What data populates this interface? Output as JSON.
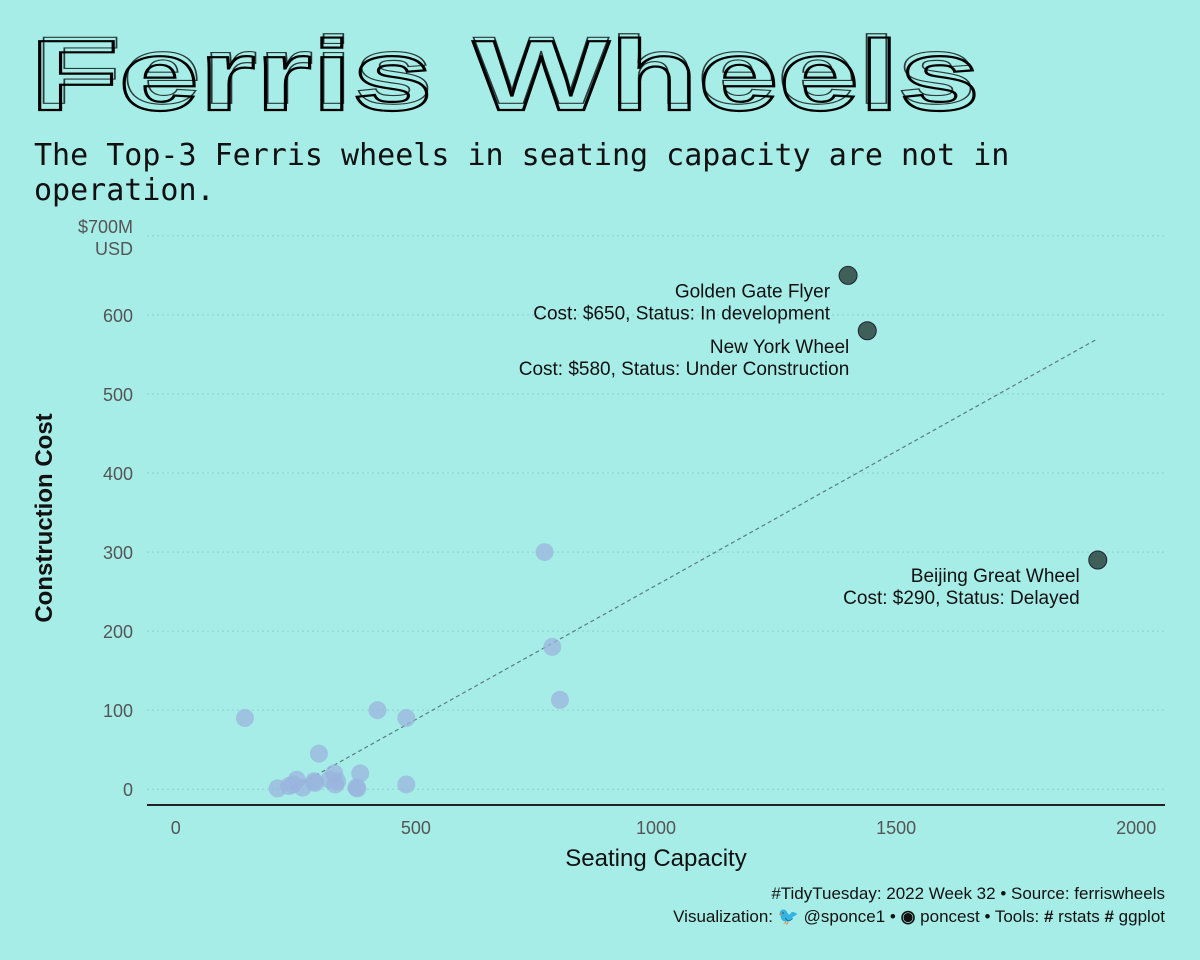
{
  "title": "Ferris Wheels",
  "subtitle": "The Top-3 Ferris wheels in seating capacity are not in operation.",
  "caption": {
    "line1": "#TidyTuesday: 2022 Week 32 • Source: ferriswheels",
    "line2_prefix": "Visualization:",
    "twitter_handle": "@sponce1",
    "sep1": "•",
    "github_handle": "poncest",
    "sep2": "• Tools:",
    "tool1": "rstats",
    "tool2": "ggplot"
  },
  "colors": {
    "background": "#a6ede8",
    "point_light": "#9ab4dd",
    "point_dark": "#3f5f59",
    "text": "#111111",
    "tick_text": "#555555",
    "grid": "#8fd0cc"
  },
  "chart_data": {
    "type": "scatter",
    "xlabel": "Seating Capacity",
    "ylabel": "Construction Cost",
    "xlim": [
      -60,
      2060
    ],
    "ylim": [
      -20,
      710
    ],
    "xticks": [
      0,
      500,
      1000,
      1500,
      2000
    ],
    "yticks": [
      0,
      100,
      200,
      300,
      400,
      500,
      600,
      700
    ],
    "ytick_labels": [
      "0",
      "100",
      "200",
      "300",
      "400",
      "500",
      "600",
      "$700M\nUSD"
    ],
    "grid": "horizontal dotted",
    "trend_line": {
      "style": "dashed",
      "from": [
        240,
        0
      ],
      "to": [
        1920,
        570
      ]
    },
    "points": [
      {
        "x": 144,
        "y": 90
      },
      {
        "x": 212,
        "y": 1
      },
      {
        "x": 236,
        "y": 4
      },
      {
        "x": 244,
        "y": 6
      },
      {
        "x": 252,
        "y": 12
      },
      {
        "x": 264,
        "y": 2
      },
      {
        "x": 288,
        "y": 10
      },
      {
        "x": 290,
        "y": 8
      },
      {
        "x": 298,
        "y": 45
      },
      {
        "x": 320,
        "y": 12
      },
      {
        "x": 330,
        "y": 20
      },
      {
        "x": 332,
        "y": 6
      },
      {
        "x": 336,
        "y": 10
      },
      {
        "x": 376,
        "y": 2
      },
      {
        "x": 378,
        "y": 1
      },
      {
        "x": 384,
        "y": 20
      },
      {
        "x": 420,
        "y": 100
      },
      {
        "x": 480,
        "y": 90
      },
      {
        "x": 480,
        "y": 6
      },
      {
        "x": 768,
        "y": 300
      },
      {
        "x": 784,
        "y": 180
      },
      {
        "x": 800,
        "y": 113
      }
    ],
    "highlighted": [
      {
        "x": 1400,
        "y": 650,
        "name": "Golden Gate Flyer",
        "detail": "Cost: $650, Status: In development"
      },
      {
        "x": 1440,
        "y": 580,
        "name": "New York Wheel",
        "detail": "Cost: $580, Status: Under Construction"
      },
      {
        "x": 1920,
        "y": 290,
        "name": "Beijing Great Wheel",
        "detail": "Cost: $290, Status: Delayed"
      }
    ]
  }
}
